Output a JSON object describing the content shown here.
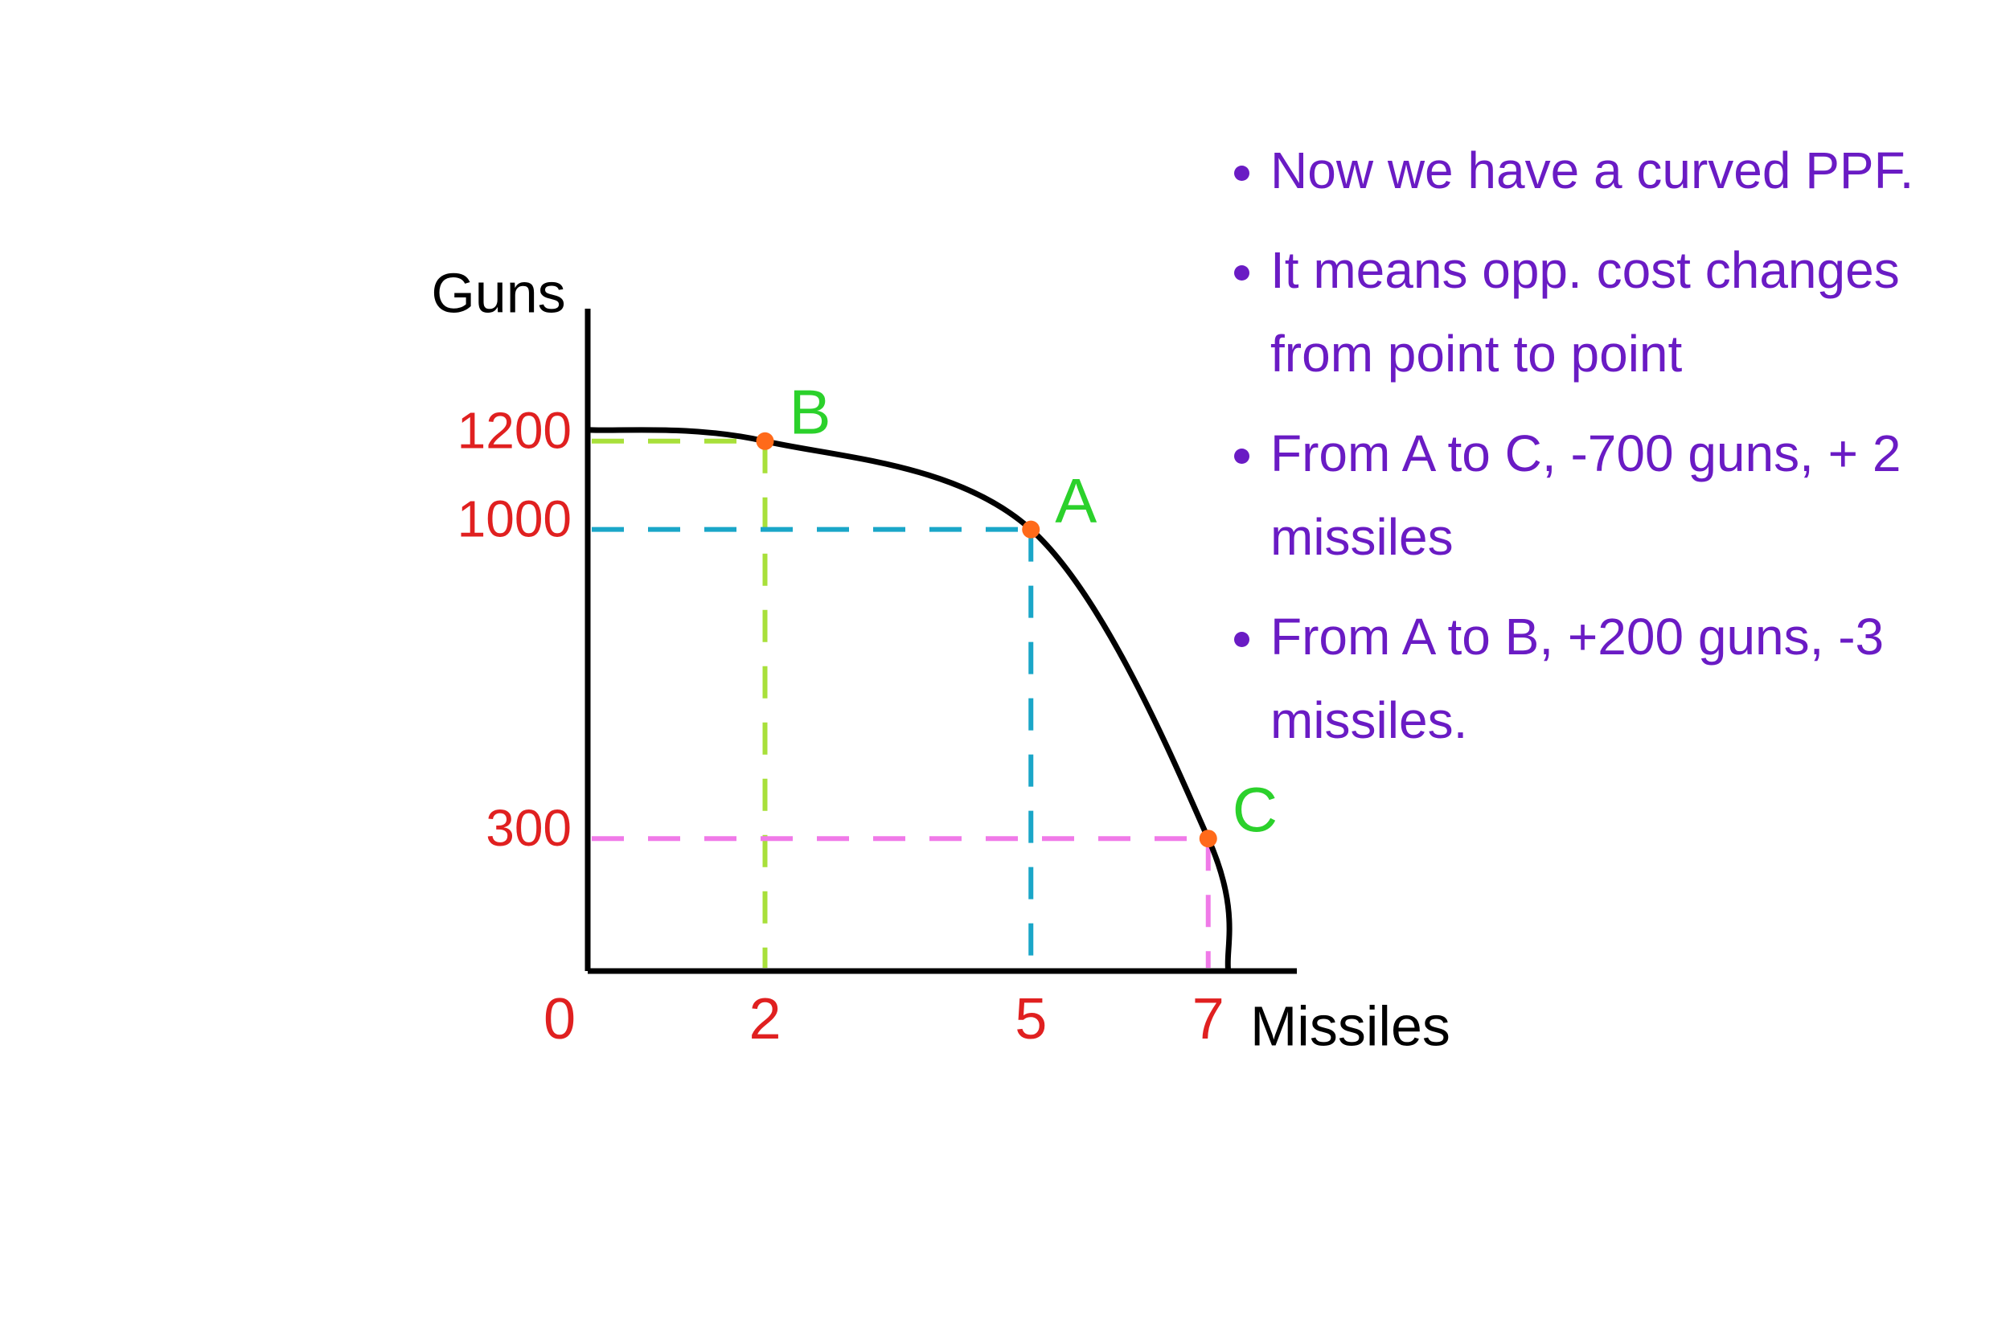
{
  "chart_data": {
    "type": "scatter",
    "x_label": "Missiles",
    "y_label": "Guns",
    "x": [
      2,
      5,
      7
    ],
    "values": [
      1200,
      1000,
      300
    ],
    "point_labels": [
      "B",
      "A",
      "C"
    ],
    "point_color": "#ff6a1a",
    "label_color": "#2bd12b",
    "curve_color": "#000000",
    "guide_colors": [
      "#a8e03a",
      "#1aa6c8",
      "#f07ae8"
    ],
    "tick_color": "#e02020",
    "xlim": [
      0,
      8
    ],
    "ylim": [
      0,
      1500
    ],
    "xticks": [
      0,
      2,
      5,
      7
    ],
    "yticks": [
      1200,
      1000,
      300
    ]
  },
  "notes": [
    "Now we have a curved PPF.",
    "It means opp. cost changes from point to point",
    "From A to C, -700 guns, + 2 missiles",
    "From A to B, +200 guns, -3 missiles."
  ]
}
